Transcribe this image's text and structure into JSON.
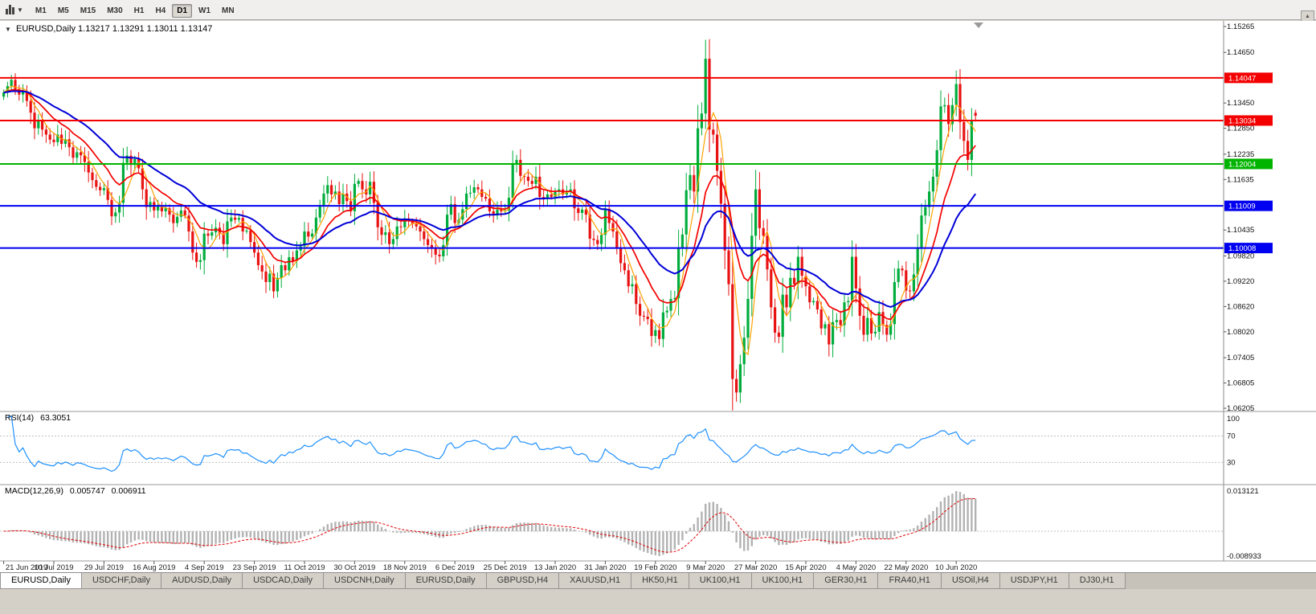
{
  "icons": {
    "dropdown_caret": "▼",
    "scroll_up": "▲",
    "title_marker": "▼"
  },
  "toolbar": {
    "timeframes": [
      {
        "label": "M1",
        "active": false
      },
      {
        "label": "M5",
        "active": false
      },
      {
        "label": "M15",
        "active": false
      },
      {
        "label": "M30",
        "active": false
      },
      {
        "label": "H1",
        "active": false
      },
      {
        "label": "H4",
        "active": false
      },
      {
        "label": "D1",
        "active": true
      },
      {
        "label": "W1",
        "active": false
      },
      {
        "label": "MN",
        "active": false
      }
    ]
  },
  "chart": {
    "title_symbol": "EURUSD,Daily",
    "title_ohlc": "1.13217 1.13291 1.13011 1.13147"
  },
  "rsi_panel": {
    "label": "RSI(14)",
    "value": "63.3051",
    "levels": [
      100,
      70,
      30
    ],
    "line_color": "#1e90ff"
  },
  "macd_panel": {
    "label": "MACD(12,26,9)",
    "value_main": "0.005747",
    "value_signal": "0.006911",
    "axis_max_label": "0.013121",
    "axis_min_label": "-0.008933"
  },
  "chart_data": {
    "type": "candlestick",
    "symbol": "EURUSD",
    "period": "Daily",
    "current_candle": {
      "open": 1.13217,
      "high": 1.13291,
      "low": 1.13011,
      "close": 1.13147
    },
    "bull_color": "#00ad3c",
    "bear_color": "#e81212",
    "y_axis": {
      "min": 1.06205,
      "max": 1.15265,
      "tick_labels": [
        "1.15265",
        "1.14650",
        "1.13450",
        "1.12850",
        "1.12235",
        "1.11635",
        "1.10435",
        "1.09820",
        "1.09220",
        "1.08620",
        "1.08020",
        "1.07405",
        "1.06805",
        "1.06205"
      ]
    },
    "h_lines": [
      {
        "price": 1.14047,
        "label": "1.14047",
        "color": "#f40000"
      },
      {
        "price": 1.13034,
        "label": "1.13034",
        "color": "#f40000"
      },
      {
        "price": 1.12004,
        "label": "1.12004",
        "color": "#00b400"
      },
      {
        "price": 1.11009,
        "label": "1.11009",
        "color": "#0000f0"
      },
      {
        "price": 1.10008,
        "label": "1.10008",
        "color": "#0000f0"
      }
    ],
    "moving_averages": [
      {
        "type": "sma",
        "period": 5,
        "color": "#ffa200",
        "width": 1.2
      },
      {
        "type": "ema",
        "period": 13,
        "color": "#f40000",
        "width": 1.7
      },
      {
        "type": "ema",
        "period": 30,
        "color": "#0000d8",
        "width": 2.0
      }
    ],
    "first_open": 1.136,
    "closes": [
      1.137,
      1.1385,
      1.14,
      1.1378,
      1.1365,
      1.1373,
      1.135,
      1.1322,
      1.1285,
      1.1305,
      1.1282,
      1.127,
      1.1258,
      1.1252,
      1.127,
      1.1248,
      1.1259,
      1.124,
      1.1215,
      1.1228,
      1.1221,
      1.1205,
      1.118,
      1.1162,
      1.1146,
      1.1138,
      1.1143,
      1.1115,
      1.1076,
      1.1085,
      1.1108,
      1.1203,
      1.122,
      1.1198,
      1.1212,
      1.119,
      1.114,
      1.1098,
      1.111,
      1.109,
      1.1102,
      1.1088,
      1.1095,
      1.108,
      1.106,
      1.1075,
      1.109,
      1.1078,
      1.104,
      1.099,
      1.0968,
      1.0972,
      1.1035,
      1.103,
      1.1038,
      1.1049,
      1.1035,
      1.101,
      1.1064,
      1.1073,
      1.1068,
      1.1072,
      1.104,
      1.1042,
      1.1015,
      1.099,
      1.096,
      1.0945,
      1.092,
      1.094,
      1.0898,
      1.093,
      1.096,
      1.0948,
      1.0979,
      1.097,
      1.0995,
      1.1005,
      1.104,
      1.1028,
      1.1035,
      1.1073,
      1.11,
      1.113,
      1.115,
      1.1128,
      1.1135,
      1.1105,
      1.113,
      1.1112,
      1.1088,
      1.1153,
      1.116,
      1.114,
      1.1128,
      1.1158,
      1.1108,
      1.105,
      1.1032,
      1.1038,
      1.101,
      1.1022,
      1.1052,
      1.105,
      1.1071,
      1.1065,
      1.1058,
      1.1052,
      1.104,
      1.1022,
      1.1008,
      1.1,
      1.0985,
      1.0981,
      1.1008,
      1.108,
      1.1105,
      1.106,
      1.1068,
      1.1093,
      1.113,
      1.1132,
      1.1145,
      1.114,
      1.1122,
      1.1118,
      1.1088,
      1.1078,
      1.1092,
      1.1088,
      1.109,
      1.112,
      1.1199,
      1.121,
      1.1172,
      1.117,
      1.116,
      1.1153,
      1.117,
      1.1122,
      1.1118,
      1.1128,
      1.1122,
      1.1134,
      1.114,
      1.1128,
      1.1136,
      1.114,
      1.1095,
      1.1084,
      1.1092,
      1.108,
      1.1023,
      1.102,
      1.101,
      1.1032,
      1.1094,
      1.106,
      1.104,
      1.1,
      1.0965,
      1.0948,
      1.091,
      1.0915,
      1.0868,
      1.084,
      1.0838,
      1.0832,
      1.0792,
      1.0806,
      1.0785,
      1.0848,
      1.0852,
      1.088,
      1.0882,
      1.1,
      1.1033,
      1.1138,
      1.1174,
      1.1135,
      1.1285,
      1.132,
      1.145,
      1.1282,
      1.127,
      1.1184,
      1.1106,
      1.0995,
      1.0915,
      1.069,
      1.0658,
      1.0725,
      1.0788,
      1.088,
      1.103,
      1.114,
      1.1048,
      1.103,
      1.095,
      1.086,
      1.08,
      1.079,
      1.089,
      1.086,
      1.093,
      1.0915,
      1.098,
      1.0935,
      1.091,
      1.0872,
      1.0875,
      1.0855,
      1.081,
      1.082,
      1.0772,
      1.0825,
      1.083,
      1.0818,
      1.0872,
      1.0875,
      1.098,
      1.0905,
      1.084,
      1.0795,
      1.0835,
      1.0798,
      1.0802,
      1.0849,
      1.0818,
      1.0795,
      1.082,
      1.092,
      1.0952,
      1.0948,
      1.09,
      1.0898,
      1.0938,
      1.1002,
      1.1078,
      1.1098,
      1.1135,
      1.117,
      1.1233,
      1.1337,
      1.134,
      1.1295,
      1.134,
      1.139,
      1.13,
      1.1255,
      1.121,
      1.1305,
      1.13147
    ],
    "wick_overrides": {
      "2": {
        "h": 1.1412
      },
      "182": {
        "h": 1.1495
      },
      "190": {
        "l": 1.0636
      },
      "247": {
        "h": 1.1422
      },
      "250": {
        "l": 1.1185
      },
      "252": {
        "o": 1.13217,
        "h": 1.13291,
        "l": 1.13011,
        "c": 1.13147
      }
    },
    "date_labels": [
      {
        "i": 0,
        "t": "21 Jun 2019"
      },
      {
        "i": 13,
        "t": "10 Jul 2019"
      },
      {
        "i": 26,
        "t": "29 Jul 2019"
      },
      {
        "i": 39,
        "t": "16 Aug 2019"
      },
      {
        "i": 52,
        "t": "4 Sep 2019"
      },
      {
        "i": 65,
        "t": "23 Sep 2019"
      },
      {
        "i": 78,
        "t": "11 Oct 2019"
      },
      {
        "i": 91,
        "t": "30 Oct 2019"
      },
      {
        "i": 104,
        "t": "18 Nov 2019"
      },
      {
        "i": 117,
        "t": "6 Dec 2019"
      },
      {
        "i": 130,
        "t": "25 Dec 2019"
      },
      {
        "i": 143,
        "t": "13 Jan 2020"
      },
      {
        "i": 156,
        "t": "31 Jan 2020"
      },
      {
        "i": 169,
        "t": "19 Feb 2020"
      },
      {
        "i": 182,
        "t": "9 Mar 2020"
      },
      {
        "i": 195,
        "t": "27 Mar 2020"
      },
      {
        "i": 208,
        "t": "15 Apr 2020"
      },
      {
        "i": 221,
        "t": "4 May 2020"
      },
      {
        "i": 234,
        "t": "22 May 2020"
      },
      {
        "i": 247,
        "t": "10 Jun 2020"
      }
    ]
  },
  "tabs": [
    {
      "label": "EURUSD,Daily",
      "active": true
    },
    {
      "label": "USDCHF,Daily",
      "active": false
    },
    {
      "label": "AUDUSD,Daily",
      "active": false
    },
    {
      "label": "USDCAD,Daily",
      "active": false
    },
    {
      "label": "USDCNH,Daily",
      "active": false
    },
    {
      "label": "EURUSD,Daily",
      "active": false
    },
    {
      "label": "GBPUSD,H4",
      "active": false
    },
    {
      "label": "XAUUSD,H1",
      "active": false
    },
    {
      "label": "HK50,H1",
      "active": false
    },
    {
      "label": "UK100,H1",
      "active": false
    },
    {
      "label": "UK100,H1",
      "active": false
    },
    {
      "label": "GER30,H1",
      "active": false
    },
    {
      "label": "FRA40,H1",
      "active": false
    },
    {
      "label": "USOil,H4",
      "active": false
    },
    {
      "label": "USDJPY,H1",
      "active": false
    },
    {
      "label": "DJ30,H1",
      "active": false
    }
  ]
}
